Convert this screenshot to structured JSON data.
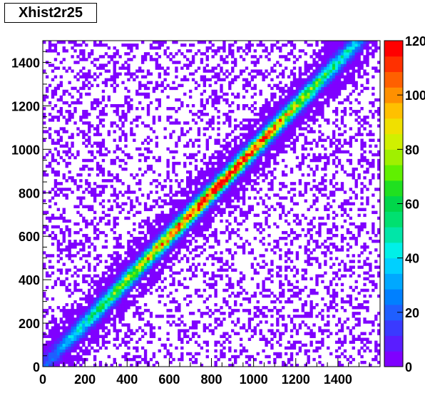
{
  "chart_data": {
    "type": "heatmap",
    "title": "Xhist2r25",
    "xlim": [
      0,
      1600
    ],
    "ylim": [
      0,
      1500
    ],
    "zlim": [
      0,
      120
    ],
    "x_ticks": [
      "0",
      "200",
      "400",
      "600",
      "800",
      "1000",
      "1200",
      "1400"
    ],
    "x_tick_values": [
      0,
      200,
      400,
      600,
      800,
      1000,
      1200,
      1400
    ],
    "y_ticks": [
      "0",
      "200",
      "400",
      "600",
      "800",
      "1000",
      "1200",
      "1400"
    ],
    "y_tick_values": [
      0,
      200,
      400,
      600,
      800,
      1000,
      1200,
      1400
    ],
    "z_ticks": [
      "0",
      "20",
      "40",
      "60",
      "80",
      "100",
      "120"
    ],
    "z_tick_values": [
      0,
      20,
      40,
      60,
      80,
      100,
      120
    ],
    "description_of_pattern": "diagonal band y≈x with peak counts ~120 near x≈750–1000, sparse scattered background of low counts",
    "diagonal_profile": [
      {
        "x": 50,
        "peak": 20
      },
      {
        "x": 200,
        "peak": 45
      },
      {
        "x": 400,
        "peak": 75
      },
      {
        "x": 600,
        "peak": 100
      },
      {
        "x": 750,
        "peak": 118
      },
      {
        "x": 900,
        "peak": 112
      },
      {
        "x": 1000,
        "peak": 115
      },
      {
        "x": 1200,
        "peak": 80
      },
      {
        "x": 1400,
        "peak": 50
      },
      {
        "x": 1550,
        "peak": 25
      }
    ],
    "palette": [
      "#7f00ff",
      "#5a1dff",
      "#3a3aff",
      "#1f5fff",
      "#0080ff",
      "#00a8ff",
      "#00d0ff",
      "#00f0e8",
      "#00e6a8",
      "#00e070",
      "#00d64a",
      "#20e020",
      "#60f000",
      "#a0f000",
      "#d0f000",
      "#f0e000",
      "#ffc000",
      "#ff9000",
      "#ff6000",
      "#ff3000",
      "#ff0000"
    ]
  }
}
